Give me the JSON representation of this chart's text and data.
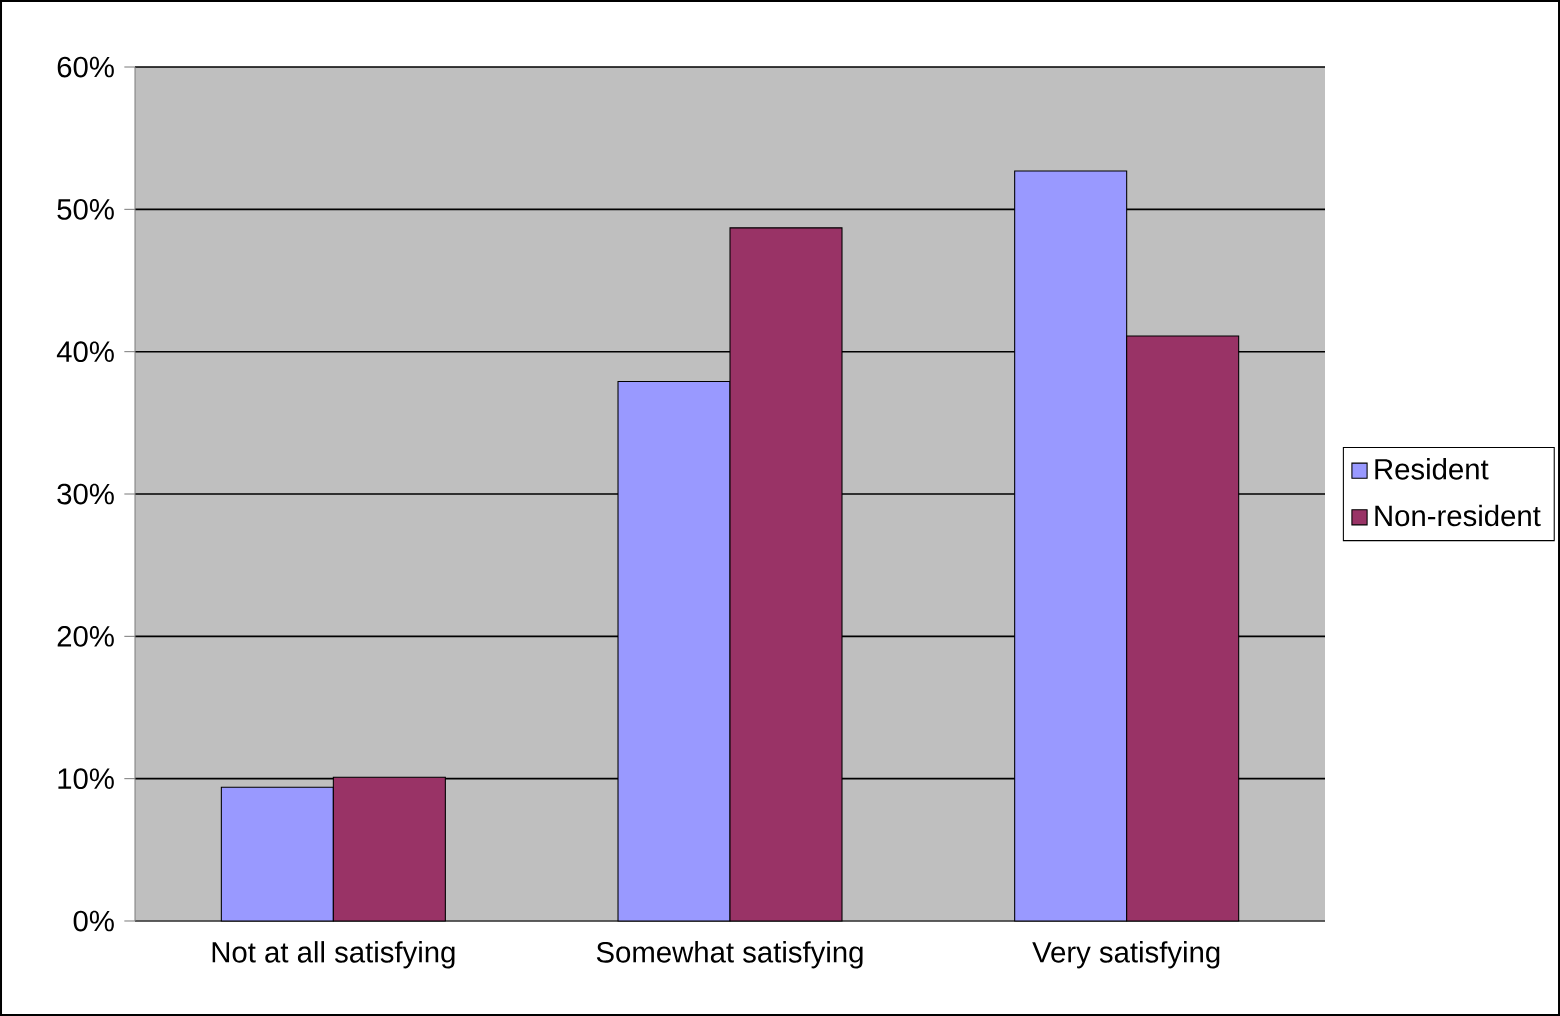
{
  "chart_data": {
    "type": "bar",
    "categories": [
      "Not at all satisfying",
      "Somewhat satisfying",
      "Very satisfying"
    ],
    "series": [
      {
        "name": "Resident",
        "color": "#9999ff",
        "values": [
          9.4,
          37.9,
          52.7
        ]
      },
      {
        "name": "Non-resident",
        "color": "#993366",
        "values": [
          10.1,
          48.7,
          41.1
        ]
      }
    ],
    "ylim": [
      0,
      60
    ],
    "yticks": [
      {
        "value": 0,
        "label": "0%"
      },
      {
        "value": 10,
        "label": "10%"
      },
      {
        "value": 20,
        "label": "20%"
      },
      {
        "value": 30,
        "label": "30%"
      },
      {
        "value": 40,
        "label": "40%"
      },
      {
        "value": 50,
        "label": "50%"
      },
      {
        "value": 60,
        "label": "60%"
      }
    ],
    "grid": "y",
    "legend": "right"
  }
}
